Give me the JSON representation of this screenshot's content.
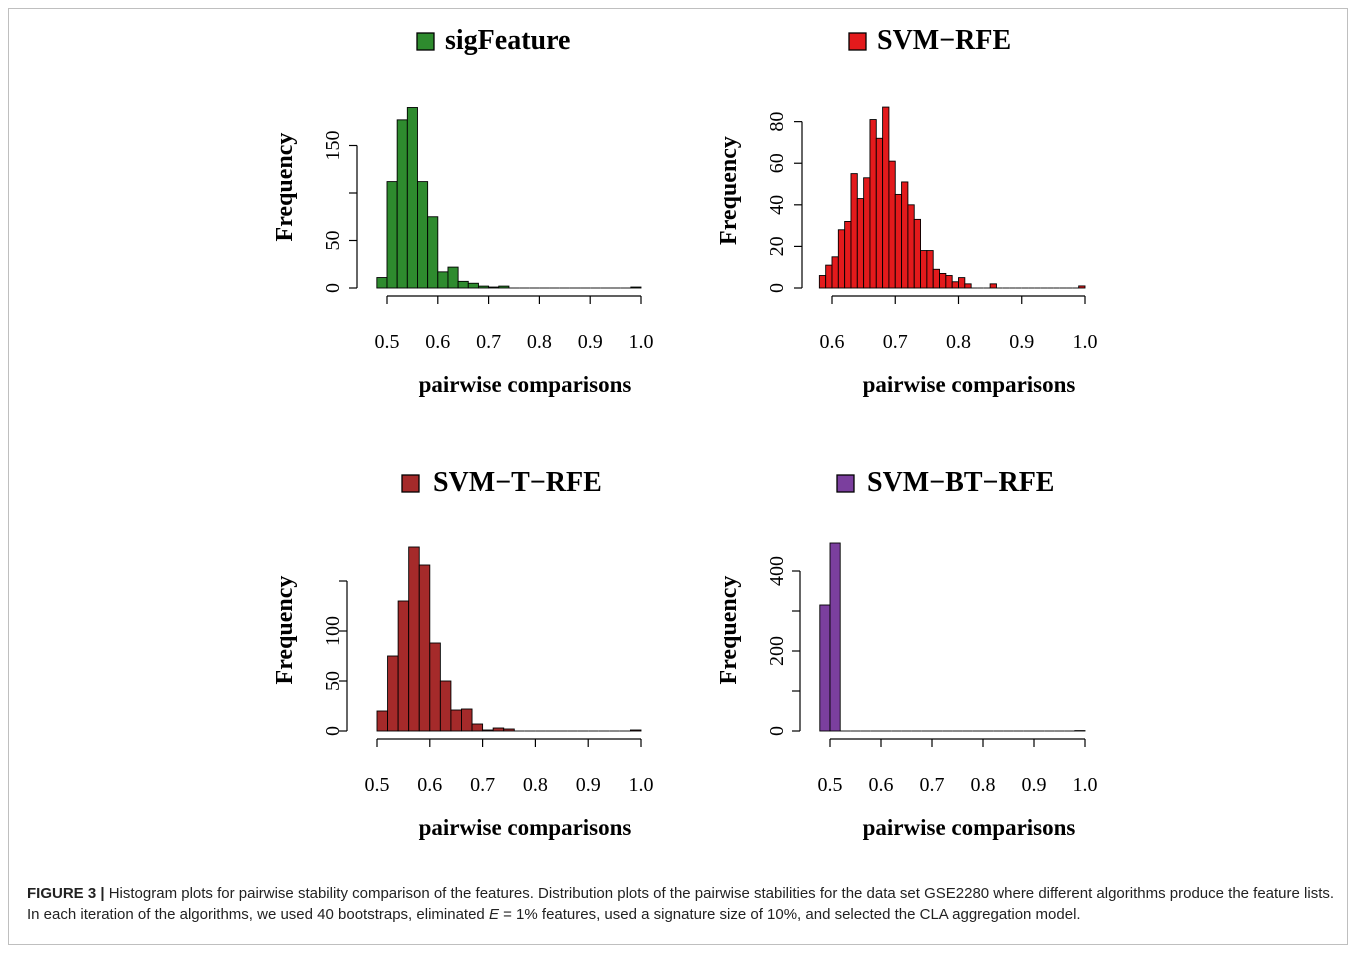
{
  "figure": {
    "caption_label": "FIGURE 3 |",
    "caption_part1": " Histogram plots for pairwise stability comparison of the features. Distribution plots of the pairwise stabilities for the data set GSE2280 where different algorithms produce the feature lists. In each iteration of the algorithms, we used 40 bootstraps, eliminated ",
    "caption_italic": "E",
    "caption_part2": " = 1% features, used a signature size of 10%, and selected the CLA aggregation model."
  },
  "chart_data": [
    {
      "type": "bar",
      "title": "sigFeature",
      "color": "#2e8b2e",
      "xlabel": "pairwise comparisons",
      "ylabel": "Frequency",
      "xlim": [
        0.5,
        1.0
      ],
      "xticks": [
        "0.5",
        "0.6",
        "0.7",
        "0.8",
        "0.9",
        "1.0"
      ],
      "ylim": [
        0,
        200
      ],
      "yticks": [
        {
          "v": 0,
          "label": "0"
        },
        {
          "v": 50,
          "label": "50"
        },
        {
          "v": 100,
          "label": ""
        },
        {
          "v": 150,
          "label": "150"
        }
      ],
      "bin_width": 0.02,
      "bins": [
        [
          0.48,
          11
        ],
        [
          0.5,
          112
        ],
        [
          0.52,
          177
        ],
        [
          0.54,
          190
        ],
        [
          0.56,
          112
        ],
        [
          0.58,
          75
        ],
        [
          0.6,
          17
        ],
        [
          0.62,
          22
        ],
        [
          0.64,
          7
        ],
        [
          0.66,
          5
        ],
        [
          0.68,
          2
        ],
        [
          0.7,
          1
        ],
        [
          0.72,
          2
        ],
        [
          0.74,
          0
        ],
        [
          0.76,
          0
        ],
        [
          0.78,
          0
        ],
        [
          0.8,
          0
        ],
        [
          0.82,
          0
        ],
        [
          0.84,
          0
        ],
        [
          0.86,
          0
        ],
        [
          0.88,
          0
        ],
        [
          0.9,
          0
        ],
        [
          0.92,
          0
        ],
        [
          0.94,
          0
        ],
        [
          0.96,
          0
        ],
        [
          0.98,
          1
        ]
      ]
    },
    {
      "type": "bar",
      "title": "SVM−RFE",
      "color": "#e31a1c",
      "xlabel": "pairwise comparisons",
      "ylabel": "Frequency",
      "xlim": [
        0.6,
        1.0
      ],
      "xticks": [
        "0.6",
        "0.7",
        "0.8",
        "0.9",
        "1.0"
      ],
      "ylim": [
        0,
        88
      ],
      "yticks": [
        {
          "v": 0,
          "label": "0"
        },
        {
          "v": 20,
          "label": "20"
        },
        {
          "v": 40,
          "label": "40"
        },
        {
          "v": 60,
          "label": "60"
        },
        {
          "v": 80,
          "label": "80"
        }
      ],
      "bin_width": 0.01,
      "bins": [
        [
          0.58,
          6
        ],
        [
          0.59,
          11
        ],
        [
          0.6,
          15
        ],
        [
          0.61,
          28
        ],
        [
          0.62,
          32
        ],
        [
          0.63,
          55
        ],
        [
          0.64,
          43
        ],
        [
          0.65,
          53
        ],
        [
          0.66,
          81
        ],
        [
          0.67,
          72
        ],
        [
          0.68,
          87
        ],
        [
          0.69,
          61
        ],
        [
          0.7,
          45
        ],
        [
          0.71,
          51
        ],
        [
          0.72,
          40
        ],
        [
          0.73,
          33
        ],
        [
          0.74,
          18
        ],
        [
          0.75,
          18
        ],
        [
          0.76,
          9
        ],
        [
          0.77,
          7
        ],
        [
          0.78,
          6
        ],
        [
          0.79,
          3
        ],
        [
          0.8,
          5
        ],
        [
          0.81,
          2
        ],
        [
          0.82,
          0
        ],
        [
          0.83,
          0
        ],
        [
          0.84,
          0
        ],
        [
          0.85,
          2
        ],
        [
          0.86,
          0
        ],
        [
          0.87,
          0
        ],
        [
          0.88,
          0
        ],
        [
          0.89,
          0
        ],
        [
          0.9,
          0
        ],
        [
          0.91,
          0
        ],
        [
          0.92,
          0
        ],
        [
          0.93,
          0
        ],
        [
          0.94,
          0
        ],
        [
          0.95,
          0
        ],
        [
          0.96,
          0
        ],
        [
          0.97,
          0
        ],
        [
          0.98,
          0
        ],
        [
          0.99,
          1
        ]
      ]
    },
    {
      "type": "bar",
      "title": "SVM−T−RFE",
      "color": "#a52a2a",
      "xlabel": "pairwise comparisons",
      "ylabel": "Frequency",
      "xlim": [
        0.5,
        1.0
      ],
      "xticks": [
        "0.5",
        "0.6",
        "0.7",
        "0.8",
        "0.9",
        "1.0"
      ],
      "ylim": [
        0,
        190
      ],
      "yticks": [
        {
          "v": 0,
          "label": "0"
        },
        {
          "v": 50,
          "label": "50"
        },
        {
          "v": 100,
          "label": "100"
        },
        {
          "v": 150,
          "label": ""
        }
      ],
      "bin_width": 0.02,
      "bins": [
        [
          0.5,
          20
        ],
        [
          0.52,
          75
        ],
        [
          0.54,
          130
        ],
        [
          0.56,
          184
        ],
        [
          0.58,
          166
        ],
        [
          0.6,
          88
        ],
        [
          0.62,
          50
        ],
        [
          0.64,
          21
        ],
        [
          0.66,
          22
        ],
        [
          0.68,
          7
        ],
        [
          0.7,
          1
        ],
        [
          0.72,
          3
        ],
        [
          0.74,
          2
        ],
        [
          0.76,
          0
        ],
        [
          0.78,
          0
        ],
        [
          0.8,
          0
        ],
        [
          0.82,
          0
        ],
        [
          0.84,
          0
        ],
        [
          0.86,
          0
        ],
        [
          0.88,
          0
        ],
        [
          0.9,
          0
        ],
        [
          0.92,
          0
        ],
        [
          0.94,
          0
        ],
        [
          0.96,
          0
        ],
        [
          0.98,
          1
        ]
      ]
    },
    {
      "type": "bar",
      "title": "SVM−BT−RFE",
      "color": "#7b3f9e",
      "xlabel": "pairwise comparisons",
      "ylabel": "Frequency",
      "xlim": [
        0.5,
        1.0
      ],
      "xticks": [
        "0.5",
        "0.6",
        "0.7",
        "0.8",
        "0.9",
        "1.0"
      ],
      "ylim": [
        0,
        475
      ],
      "yticks": [
        {
          "v": 0,
          "label": "0"
        },
        {
          "v": 100,
          "label": ""
        },
        {
          "v": 200,
          "label": "200"
        },
        {
          "v": 300,
          "label": ""
        },
        {
          "v": 400,
          "label": "400"
        }
      ],
      "bin_width": 0.02,
      "bins": [
        [
          0.48,
          315
        ],
        [
          0.5,
          470
        ],
        [
          0.52,
          0
        ],
        [
          0.54,
          0
        ],
        [
          0.56,
          0
        ],
        [
          0.58,
          0
        ],
        [
          0.6,
          0
        ],
        [
          0.62,
          0
        ],
        [
          0.64,
          0
        ],
        [
          0.66,
          0
        ],
        [
          0.68,
          0
        ],
        [
          0.7,
          0
        ],
        [
          0.72,
          0
        ],
        [
          0.74,
          0
        ],
        [
          0.76,
          0
        ],
        [
          0.78,
          0
        ],
        [
          0.8,
          0
        ],
        [
          0.82,
          0
        ],
        [
          0.84,
          0
        ],
        [
          0.86,
          0
        ],
        [
          0.88,
          0
        ],
        [
          0.9,
          0
        ],
        [
          0.92,
          0
        ],
        [
          0.94,
          0
        ],
        [
          0.96,
          0
        ],
        [
          0.98,
          1
        ]
      ]
    }
  ]
}
